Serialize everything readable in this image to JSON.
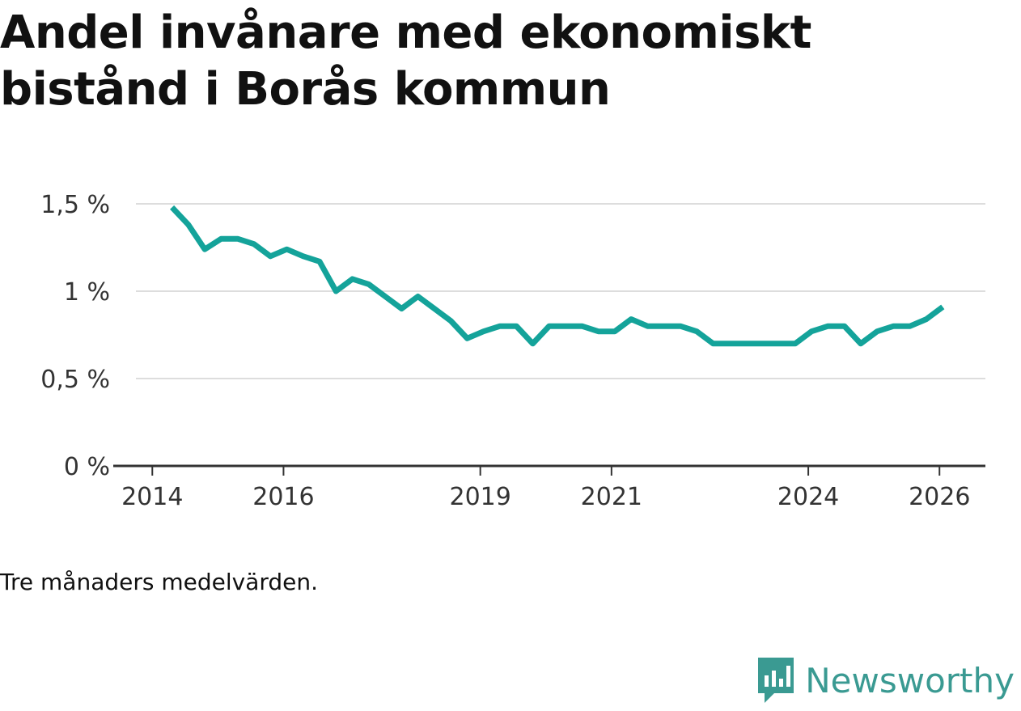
{
  "title": "Andel invånare med ekonomiskt bistånd i Borås kommun",
  "note": "Tre månaders medelvärden.",
  "brand": {
    "name": "Newsworthy",
    "icon": "newsworthy-logo-icon"
  },
  "colors": {
    "line": "#14a39a",
    "grid": "#dddddd",
    "axis": "#333333",
    "brand": "#3a9a92"
  },
  "chart_data": {
    "type": "line",
    "title": "Andel invånare med ekonomiskt bistånd i Borås kommun",
    "xlabel": "",
    "ylabel": "",
    "x_ticks": [
      2014,
      2016,
      2019,
      2021,
      2024,
      2026
    ],
    "x_tick_labels": [
      "2014",
      "2016",
      "2019",
      "2021",
      "2024",
      "2026"
    ],
    "xlim": [
      2013.75,
      2026.7
    ],
    "y_ticks": [
      0,
      0.5,
      1,
      1.5
    ],
    "y_tick_labels": [
      "0 %",
      "0,5 %",
      "1 %",
      "1,5 %"
    ],
    "ylim": [
      0,
      1.5
    ],
    "grid": true,
    "series": [
      {
        "name": "Andel invånare med ekonomiskt bistånd",
        "x": [
          2014.3,
          2014.55,
          2014.8,
          2015.05,
          2015.3,
          2015.55,
          2015.8,
          2016.05,
          2016.3,
          2016.55,
          2016.8,
          2017.05,
          2017.3,
          2017.55,
          2017.8,
          2018.05,
          2018.3,
          2018.55,
          2018.8,
          2019.05,
          2019.3,
          2019.55,
          2019.8,
          2020.05,
          2020.3,
          2020.55,
          2020.8,
          2021.05,
          2021.3,
          2021.55,
          2021.8,
          2022.05,
          2022.3,
          2022.55,
          2022.8,
          2023.05,
          2023.3,
          2023.55,
          2023.8,
          2024.05,
          2024.3,
          2024.55,
          2024.8,
          2025.05,
          2025.3,
          2025.55,
          2025.8,
          2026.05
        ],
        "values": [
          1.48,
          1.38,
          1.24,
          1.3,
          1.3,
          1.27,
          1.2,
          1.24,
          1.2,
          1.17,
          1.0,
          1.07,
          1.04,
          0.97,
          0.9,
          0.97,
          0.9,
          0.83,
          0.73,
          0.77,
          0.8,
          0.8,
          0.7,
          0.8,
          0.8,
          0.8,
          0.77,
          0.77,
          0.84,
          0.8,
          0.8,
          0.8,
          0.77,
          0.7,
          0.7,
          0.7,
          0.7,
          0.7,
          0.7,
          0.77,
          0.8,
          0.8,
          0.7,
          0.77,
          0.8,
          0.8,
          0.84,
          0.91
        ]
      }
    ]
  }
}
